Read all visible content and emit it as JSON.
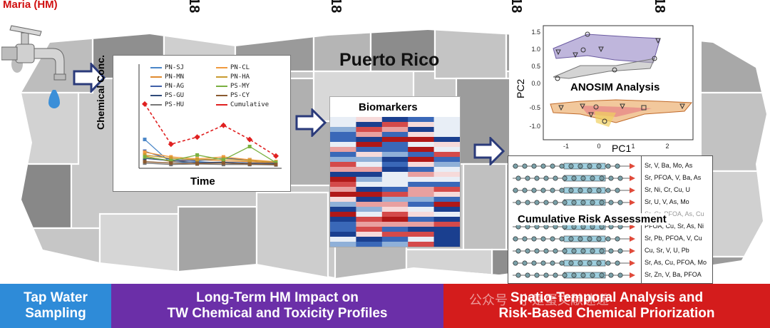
{
  "header": {
    "event_label": "Maria (HM)",
    "year_labels": [
      "18",
      "18",
      "18",
      "18"
    ]
  },
  "map": {
    "title": "Puerto Rico"
  },
  "chart": {
    "ylabel": "Chemical Conc.",
    "xlabel": "Time",
    "legend_left": [
      "PN-SJ",
      "PN-MN",
      "PN-AG",
      "PS-GU",
      "PS-HU"
    ],
    "legend_right": [
      "PN-CL",
      "PN-HA",
      "PS-MY",
      "PS-CY",
      "Cumulative"
    ]
  },
  "chart_data": {
    "type": "line",
    "xlabel": "Time",
    "ylabel": "Chemical Conc.",
    "x": [
      1,
      2,
      3,
      4,
      5,
      6
    ],
    "series": [
      {
        "name": "PN-SJ",
        "values": [
          0.55,
          0.05,
          0.08,
          0.05,
          0.02,
          0.03
        ]
      },
      {
        "name": "PN-MN",
        "values": [
          0.2,
          0.08,
          0.12,
          0.1,
          0.08,
          0.05
        ]
      },
      {
        "name": "PN-AG",
        "values": [
          0.3,
          0.12,
          0.1,
          0.15,
          0.12,
          0.06
        ]
      },
      {
        "name": "PS-GU",
        "values": [
          0.15,
          0.1,
          0.06,
          0.07,
          0.05,
          0.04
        ]
      },
      {
        "name": "PS-HU",
        "values": [
          0.05,
          0.02,
          0.03,
          0.02,
          0.02,
          0.01
        ]
      },
      {
        "name": "PN-CL",
        "values": [
          0.28,
          0.18,
          0.14,
          0.18,
          0.12,
          0.08
        ]
      },
      {
        "name": "PN-HA",
        "values": [
          0.22,
          0.15,
          0.12,
          0.14,
          0.1,
          0.07
        ]
      },
      {
        "name": "PS-MY",
        "values": [
          0.18,
          0.1,
          0.22,
          0.12,
          0.4,
          0.06
        ]
      },
      {
        "name": "PS-CY",
        "values": [
          0.08,
          0.05,
          0.04,
          0.05,
          0.03,
          0.02
        ]
      },
      {
        "name": "Cumulative",
        "values": [
          1.3,
          0.45,
          0.6,
          0.85,
          0.55,
          0.2
        ]
      }
    ],
    "colors": [
      "#4a86c8",
      "#e08a2e",
      "#3f5fa8",
      "#2f4a7a",
      "#777777",
      "#f09a3e",
      "#c89a30",
      "#7ab040",
      "#8a5a30",
      "#e02020"
    ]
  },
  "biomarkers": {
    "title": "Biomarkers"
  },
  "pca": {
    "title": "ANOSIM Analysis",
    "xlabel": "PC1",
    "ylabel": "PC2",
    "xticks": [
      "-1",
      "0",
      "1",
      "2"
    ],
    "yticks": [
      "1.5",
      "1.0",
      "0.5",
      "0.0",
      "-0.5",
      "-1.0"
    ]
  },
  "risk": {
    "title": "Cumulative Risk Assessment",
    "labels": [
      "Sr, V, Ba, Mo, As",
      "Sr, PFOA, V, Ba, As",
      "Sr, Ni, Cr, Cu, U",
      "Sr, U, V, As, Mo",
      "Sr, Cr, PFOA, As, Cu",
      "PFOA, Cu, Sr, As, Ni",
      "Sr, Pb, PFOA, V, Cu",
      "Cu, Sr, V, U, Pb",
      "Sr, As, Cu, PFOA, Mo",
      "Sr, Zn, V, Ba, PFOA"
    ]
  },
  "bottom": {
    "seg1": [
      "Tap Water",
      "Sampling"
    ],
    "seg2": [
      "Long-Term HM Impact on",
      "TW Chemical and Toxicity Profiles"
    ],
    "seg3": [
      "Spatio-Temporal Analysis and",
      "Risk-Based Chemical Priorization"
    ]
  },
  "watermark": "公众号 · 小是蛋文献速递",
  "colors": {
    "seg1": "#2e8bd8",
    "seg2": "#6b2fa8",
    "seg3": "#d41c1c",
    "arrow": "#2a3a7a",
    "map_light": "#c9c9c9",
    "map_dark": "#8a8a8a"
  }
}
